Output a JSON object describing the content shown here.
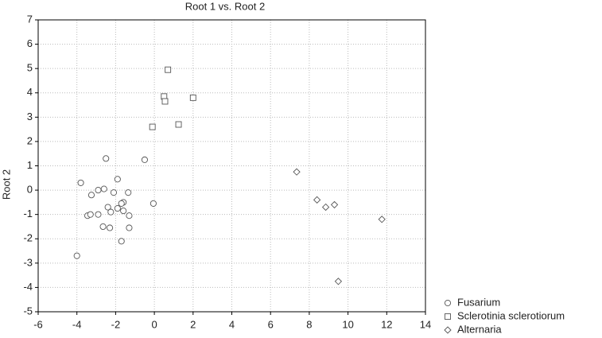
{
  "chart_data": {
    "type": "scatter",
    "title": "Root 1 vs. Root 2",
    "y_label": "Root 2",
    "xlim": [
      -6,
      14
    ],
    "xticks": [
      -6,
      -4,
      -2,
      0,
      2,
      4,
      6,
      8,
      10,
      12,
      14
    ],
    "ylim": [
      -5,
      7
    ],
    "yticks": [
      -5,
      -4,
      -3,
      -2,
      -1,
      0,
      1,
      2,
      3,
      4,
      5,
      6,
      7
    ],
    "grid": true,
    "legend": "bottom-right",
    "series": [
      {
        "name": "Fusarium",
        "marker": "circle",
        "color": "#555555",
        "x": [
          -2.5,
          -3.8,
          -0.5,
          -1.9,
          -3.25,
          -2.9,
          -2.6,
          -2.1,
          -1.35,
          -1.6,
          -1.7,
          -0.05,
          -3.45,
          -3.3,
          -2.9,
          -2.4,
          -2.25,
          -1.9,
          -1.6,
          -1.3,
          -2.65,
          -2.3,
          -1.3,
          -1.7,
          -4.0
        ],
        "y": [
          1.3,
          0.3,
          1.25,
          0.45,
          -0.2,
          0.0,
          0.05,
          -0.1,
          -0.1,
          -0.5,
          -0.55,
          -0.55,
          -1.05,
          -1.0,
          -1.0,
          -0.7,
          -0.9,
          -0.75,
          -0.85,
          -1.05,
          -1.5,
          -1.55,
          -1.55,
          -2.1,
          -2.7
        ]
      },
      {
        "name": "Sclerotinia sclerotiorum",
        "marker": "square",
        "color": "#555555",
        "x": [
          0.7,
          0.5,
          0.55,
          2.0,
          1.25,
          -0.1
        ],
        "y": [
          4.95,
          3.85,
          3.65,
          3.8,
          2.7,
          2.6
        ]
      },
      {
        "name": "Alternaria",
        "marker": "diamond",
        "color": "#555555",
        "x": [
          7.35,
          8.4,
          8.85,
          9.3,
          11.75,
          9.5
        ],
        "y": [
          0.75,
          -0.4,
          -0.7,
          -0.6,
          -1.2,
          -3.75
        ]
      }
    ]
  }
}
